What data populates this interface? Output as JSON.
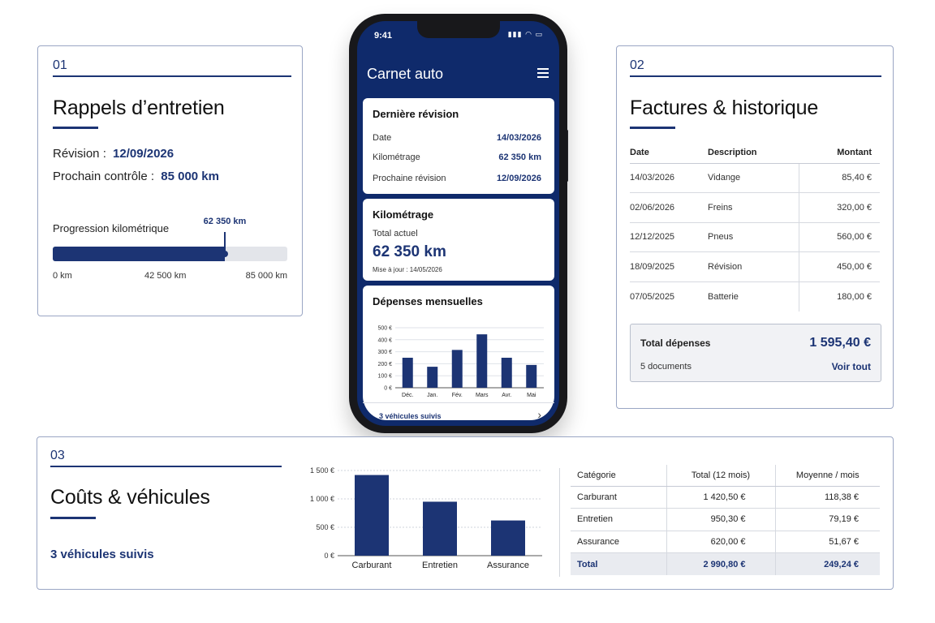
{
  "card1": {
    "number": "01",
    "title": "Rappels d’entretien",
    "revision_label": "Révision :",
    "revision_value": "12/09/2026",
    "next_check_label": "Prochain contrôle :",
    "next_check_value": "85 000 km",
    "progress": {
      "label": "Progression kilométrique",
      "current": 62350,
      "current_label": "62 350 km",
      "min": 0,
      "max": 85000,
      "ticks": [
        "0 km",
        "42 500 km",
        "85 000 km"
      ]
    }
  },
  "phone": {
    "time": "9:41",
    "app_title": "Carnet auto",
    "last_revision": {
      "title": "Dernière révision",
      "rows": [
        {
          "label": "Date",
          "value": "14/03/2026"
        },
        {
          "label": "Kilométrage",
          "value": "62 350 km"
        },
        {
          "label": "Prochaine révision",
          "value": "12/09/2026"
        }
      ]
    },
    "mileage": {
      "title": "Kilométrage",
      "total_label": "Total actuel",
      "total_value": "62 350 km",
      "updated": "Mise à jour : 14/05/2026"
    },
    "monthly": {
      "title": "Dépenses mensuelles"
    },
    "vehicles_link": "3 véhicules suivis"
  },
  "card2": {
    "number": "02",
    "title": "Factures & historique",
    "columns": [
      "Date",
      "Description",
      "Montant"
    ],
    "rows": [
      {
        "date": "14/03/2026",
        "description": "Vidange",
        "amount": "85,40 €"
      },
      {
        "date": "02/06/2026",
        "description": "Freins",
        "amount": "320,00 €"
      },
      {
        "date": "12/12/2025",
        "description": "Pneus",
        "amount": "560,00 €"
      },
      {
        "date": "18/09/2025",
        "description": "Révision",
        "amount": "450,00 €"
      },
      {
        "date": "07/05/2025",
        "description": "Batterie",
        "amount": "180,00 €"
      }
    ],
    "total_label": "Total dépenses",
    "total_value": "1 595,40 €",
    "documents": "5 documents",
    "see_all": "Voir tout"
  },
  "card3": {
    "number": "03",
    "title": "Coûts & véhicules",
    "vehicles": "3 véhicules suivis",
    "columns": [
      "Catégorie",
      "Total (12 mois)",
      "Moyenne / mois"
    ],
    "rows": [
      {
        "category": "Carburant",
        "total": "1 420,50 €",
        "avg": "118,38 €"
      },
      {
        "category": "Entretien",
        "total": "950,30 €",
        "avg": "79,19 €"
      },
      {
        "category": "Assurance",
        "total": "620,00 €",
        "avg": "51,67 €"
      }
    ],
    "total_row": {
      "category": "Total",
      "total": "2 990,80 €",
      "avg": "249,24 €"
    }
  },
  "colors": {
    "accent": "#1c3474",
    "phone_screen": "#0f2a6b",
    "track": "#e3e5ea"
  },
  "chart_data": [
    {
      "type": "bar",
      "title": "Dépenses mensuelles",
      "categories": [
        "Déc.",
        "Jan.",
        "Fév.",
        "Mars",
        "Avr.",
        "Mai"
      ],
      "values": [
        250,
        175,
        315,
        445,
        250,
        190
      ],
      "ylim": [
        0,
        500
      ],
      "yticks": [
        0,
        100,
        200,
        300,
        400,
        500
      ],
      "ytick_labels": [
        "0 €",
        "100 €",
        "200 €",
        "300 €",
        "400 €",
        "500 €"
      ],
      "grid": true
    },
    {
      "type": "bar",
      "categories": [
        "Carburant",
        "Entretien",
        "Assurance"
      ],
      "values": [
        1420.5,
        950.3,
        620.0
      ],
      "ylim": [
        0,
        1500
      ],
      "yticks": [
        0,
        500,
        1000,
        1500
      ],
      "ytick_labels": [
        "0 €",
        "500 €",
        "1 000 €",
        "1 500 €"
      ],
      "grid": true
    }
  ]
}
